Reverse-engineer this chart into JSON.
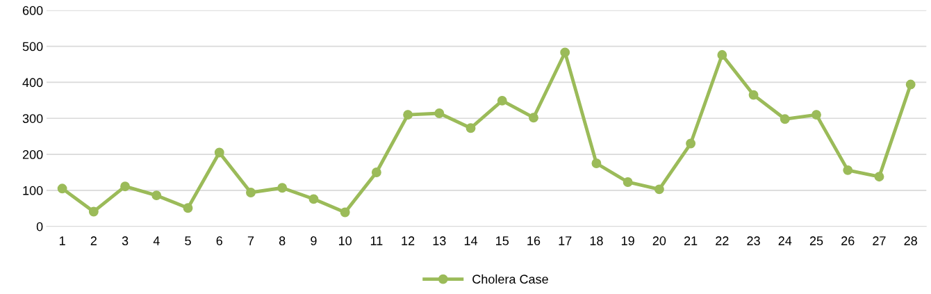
{
  "chart_data": {
    "type": "line",
    "categories": [
      "1",
      "2",
      "3",
      "4",
      "5",
      "6",
      "7",
      "8",
      "9",
      "10",
      "11",
      "12",
      "13",
      "14",
      "15",
      "16",
      "17",
      "18",
      "19",
      "20",
      "21",
      "22",
      "23",
      "24",
      "25",
      "26",
      "27",
      "28"
    ],
    "series": [
      {
        "name": "Cholera Case",
        "color": "#9bbb59",
        "values": [
          105,
          41,
          111,
          86,
          51,
          205,
          94,
          107,
          76,
          39,
          150,
          310,
          314,
          273,
          349,
          302,
          483,
          175,
          123,
          103,
          230,
          476,
          365,
          298,
          310,
          156,
          138,
          394
        ]
      }
    ],
    "ylim": [
      0,
      600
    ],
    "yticks": [
      0,
      100,
      200,
      300,
      400,
      500,
      600
    ],
    "grid": "y",
    "legend": "bottom",
    "marker": "circle",
    "line_style": "solid"
  }
}
